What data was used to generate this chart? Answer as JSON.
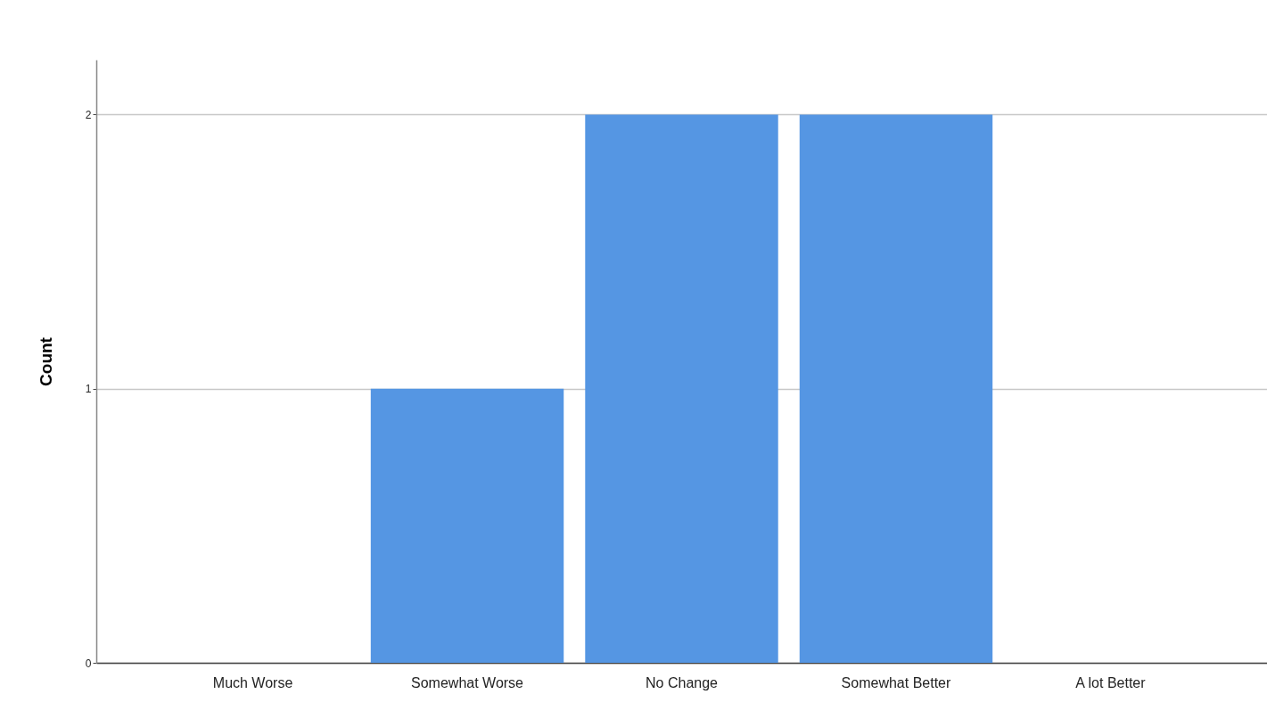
{
  "chart_data": {
    "type": "bar",
    "ylabel": "Count",
    "categories": [
      "Much Worse",
      "Somewhat Worse",
      "No Change",
      "Somewhat Better",
      "A lot Better"
    ],
    "values": [
      0,
      1,
      2,
      2,
      0
    ],
    "color": "#5596e3",
    "ylim": [
      0,
      2.2
    ],
    "yticks": [
      0,
      1,
      2
    ],
    "grid": "y"
  }
}
